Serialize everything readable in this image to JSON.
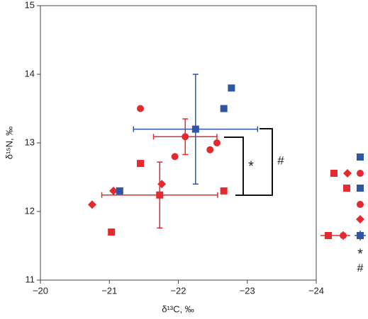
{
  "chart_data": {
    "type": "scatter",
    "xlabel": "δ¹³C, ‰",
    "ylabel": "δ¹⁵N, ‰",
    "xlim": [
      -20,
      -24
    ],
    "ylim": [
      11,
      15
    ],
    "xticks": [
      {
        "value": -20,
        "label": "−20"
      },
      {
        "value": -21,
        "label": "−21"
      },
      {
        "value": -22,
        "label": "−22"
      },
      {
        "value": -23,
        "label": "−23"
      },
      {
        "value": -24,
        "label": "−24"
      }
    ],
    "yticks": [
      11,
      12,
      13,
      14,
      15
    ],
    "series": [
      {
        "marker": "circle",
        "color": "#e52a2f",
        "x": [
          -21.45,
          -21.95,
          -22.46,
          -22.56
        ],
        "values": [
          13.5,
          12.8,
          12.9,
          13.0
        ]
      },
      {
        "marker": "square",
        "color": "#e52a2f",
        "x": [
          -21.03,
          -21.45,
          -22.66
        ],
        "values": [
          11.7,
          12.7,
          12.3
        ]
      },
      {
        "marker": "diamond",
        "color": "#e52a2f",
        "x": [
          -20.75,
          -21.06,
          -21.76
        ],
        "values": [
          12.1,
          12.3,
          12.4
        ]
      },
      {
        "marker": "square",
        "color": "#2f55a5",
        "x": [
          -21.15,
          -22.66,
          -22.77
        ],
        "values": [
          12.3,
          13.5,
          13.8
        ]
      },
      {
        "marker": "circle",
        "color": "#e52a2f",
        "x": [
          -22.1
        ],
        "values": [
          13.09
        ],
        "xerr": [
          0.46
        ],
        "yerr": [
          0.26
        ]
      },
      {
        "marker": "square",
        "color": "#e52a2f",
        "x": [
          -21.73
        ],
        "values": [
          12.24
        ],
        "xerr": [
          0.84
        ],
        "yerr": [
          0.48
        ]
      },
      {
        "marker": "square",
        "color": "#2f55a5",
        "x": [
          -22.25
        ],
        "values": [
          13.2
        ],
        "xerr": [
          0.9
        ],
        "yerr": [
          0.8
        ]
      }
    ],
    "annotations": [
      "*",
      "#"
    ]
  }
}
